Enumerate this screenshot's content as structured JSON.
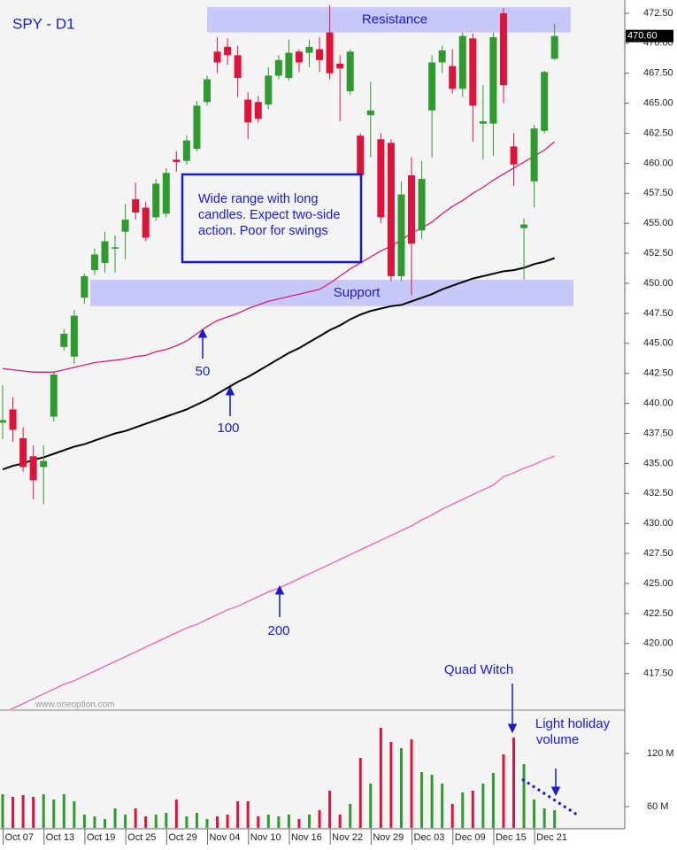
{
  "chart_data": {
    "type": "candlestick",
    "title": "SPY - D1",
    "categories": [
      null,
      "Oct 07",
      null,
      null,
      null,
      "Oct 13",
      null,
      null,
      null,
      "Oct 19",
      null,
      null,
      null,
      "Oct 25",
      null,
      null,
      null,
      "Oct 29",
      null,
      null,
      null,
      "Nov 04",
      null,
      null,
      null,
      "Nov 10",
      null,
      null,
      null,
      "Nov 16",
      null,
      null,
      null,
      "Nov 22",
      null,
      null,
      null,
      "Nov 29",
      null,
      null,
      null,
      "Dec 03",
      null,
      null,
      null,
      "Dec 09",
      null,
      null,
      null,
      "Dec 15",
      null,
      null,
      null,
      "Dec 21",
      null
    ],
    "open": [
      438.4,
      439.5,
      437.1,
      435.6,
      434.7,
      438.9,
      444.7,
      443.9,
      448.8,
      451.1,
      451.7,
      452.9,
      454.3,
      457.0,
      456.3,
      455.5,
      455.8,
      460.3,
      460.2,
      461.2,
      465.1,
      469.3,
      469.7,
      469.0,
      465.3,
      465.1,
      464.9,
      467.3,
      467.1,
      469.3,
      469.2,
      469.5,
      470.9,
      468.3,
      466.0,
      462.3,
      464.0,
      462.0,
      461.7,
      450.6,
      459.0,
      454.4,
      464.4,
      468.4,
      468.1,
      466.2,
      470.4,
      463.3,
      463.3,
      472.5,
      461.4,
      454.6,
      458.5,
      462.7,
      468.7
    ],
    "high": [
      441.5,
      440.5,
      438.0,
      436.5,
      436.5,
      442.6,
      446.2,
      447.8,
      450.8,
      452.9,
      454.3,
      454.0,
      456.6,
      458.4,
      456.8,
      458.7,
      459.6,
      461.0,
      462.3,
      465.2,
      467.3,
      470.5,
      470.4,
      469.8,
      465.9,
      465.6,
      468.0,
      469.0,
      470.3,
      469.5,
      470.3,
      470.5,
      473.2,
      469.0,
      469.5,
      462.5,
      466.8,
      462.5,
      462.0,
      458.5,
      460.5,
      460.2,
      469.0,
      469.8,
      469.5,
      470.9,
      470.8,
      466.5,
      470.9,
      472.9,
      462.5,
      455.4,
      463.2,
      467.7,
      471.6
    ],
    "low": [
      437.0,
      436.8,
      434.3,
      432.0,
      431.6,
      438.5,
      444.4,
      443.3,
      448.3,
      450.7,
      450.9,
      450.9,
      452.0,
      455.3,
      453.5,
      455.2,
      455.5,
      459.3,
      459.9,
      461.0,
      464.8,
      467.5,
      468.2,
      465.5,
      462.0,
      463.4,
      464.5,
      467.0,
      466.9,
      467.6,
      468.0,
      467.6,
      467.0,
      463.5,
      465.7,
      458.7,
      460.5,
      455.0,
      450.2,
      450.2,
      449.0,
      453.7,
      460.5,
      467.5,
      465.8,
      465.5,
      461.8,
      460.3,
      460.6,
      465.0,
      458.1,
      450.3,
      456.3,
      462.5,
      468.6
    ],
    "close": [
      438.6,
      437.8,
      434.7,
      433.6,
      435.2,
      442.4,
      445.8,
      447.3,
      450.6,
      452.4,
      453.5,
      453.0,
      455.3,
      455.9,
      453.8,
      458.3,
      459.2,
      460.1,
      461.9,
      464.8,
      467.0,
      468.4,
      469.0,
      467.1,
      463.4,
      463.7,
      467.3,
      468.6,
      469.2,
      468.4,
      469.7,
      468.6,
      467.5,
      467.9,
      469.3,
      459.0,
      464.4,
      455.5,
      450.6,
      457.4,
      453.3,
      458.7,
      468.4,
      469.4,
      466.2,
      470.6,
      464.8,
      463.5,
      470.5,
      466.5,
      459.9,
      454.9,
      462.9,
      467.6,
      470.6
    ],
    "up_color": "#2f9a2f",
    "down_color": "#dc143c",
    "ylim": [
      414.6,
      473.6
    ],
    "yticks": [
      {
        "value": 417.5,
        "label": "417.50"
      },
      {
        "value": 420,
        "label": "420.00"
      },
      {
        "value": 422.5,
        "label": "422.50"
      },
      {
        "value": 425,
        "label": "425.00"
      },
      {
        "value": 427.5,
        "label": "427.50"
      },
      {
        "value": 430,
        "label": "430.00"
      },
      {
        "value": 432.5,
        "label": "432.50"
      },
      {
        "value": 435,
        "label": "435.00"
      },
      {
        "value": 437.5,
        "label": "437.50"
      },
      {
        "value": 440,
        "label": "440.00"
      },
      {
        "value": 442.5,
        "label": "442.50"
      },
      {
        "value": 445,
        "label": "445.00"
      },
      {
        "value": 447.5,
        "label": "447.50"
      },
      {
        "value": 450,
        "label": "450.00"
      },
      {
        "value": 452.5,
        "label": "452.50"
      },
      {
        "value": 455,
        "label": "455.00"
      },
      {
        "value": 457.5,
        "label": "457.50"
      },
      {
        "value": 460,
        "label": "460.00"
      },
      {
        "value": 462.5,
        "label": "462.50"
      },
      {
        "value": 465,
        "label": "465.00"
      },
      {
        "value": 467.5,
        "label": "467.50"
      },
      {
        "value": 470,
        "label": "470.00"
      },
      {
        "value": 472.5,
        "label": "472.50"
      }
    ],
    "last_price": {
      "value": 470.6,
      "label": "470.60"
    },
    "moving_averages": [
      {
        "name": "50",
        "color": "#d0207a",
        "values": [
          442.9,
          442.8,
          442.7,
          442.6,
          442.6,
          442.6,
          442.8,
          443.0,
          443.2,
          443.4,
          443.5,
          443.6,
          443.7,
          443.9,
          444.0,
          444.3,
          444.5,
          444.8,
          445.2,
          445.8,
          446.4,
          446.9,
          447.2,
          447.5,
          447.9,
          448.2,
          448.5,
          448.7,
          448.9,
          449.1,
          449.3,
          449.5,
          450.0,
          450.6,
          451.2,
          451.7,
          452.2,
          452.7,
          453.1,
          453.6,
          454.2,
          454.6,
          455.1,
          455.8,
          456.4,
          456.9,
          457.5,
          458.0,
          458.6,
          459.1,
          459.6,
          460.1,
          460.6,
          461.1,
          461.8
        ]
      },
      {
        "name": "100",
        "color": "#000000",
        "values": [
          434.5,
          434.8,
          435.0,
          435.3,
          435.5,
          435.8,
          436.1,
          436.4,
          436.6,
          436.9,
          437.2,
          437.5,
          437.7,
          438.0,
          438.3,
          438.6,
          438.9,
          439.2,
          439.5,
          439.9,
          440.3,
          440.8,
          441.3,
          441.8,
          442.2,
          442.7,
          443.2,
          443.7,
          444.2,
          444.6,
          445.1,
          445.6,
          446.1,
          446.5,
          447.0,
          447.4,
          447.7,
          447.9,
          448.1,
          448.2,
          448.5,
          448.8,
          449.1,
          449.5,
          449.8,
          450.1,
          450.4,
          450.6,
          450.8,
          451.0,
          451.1,
          451.3,
          451.6,
          451.8,
          452.1
        ]
      },
      {
        "name": "200",
        "color": "#f060b0",
        "values": [
          414.2,
          414.6,
          415.0,
          415.4,
          415.8,
          416.2,
          416.6,
          416.9,
          417.3,
          417.7,
          418.1,
          418.5,
          418.9,
          419.3,
          419.7,
          420.1,
          420.5,
          420.9,
          421.3,
          421.6,
          422.0,
          422.4,
          422.8,
          423.1,
          423.5,
          423.9,
          424.3,
          424.6,
          425.0,
          425.4,
          425.8,
          426.2,
          426.6,
          427.0,
          427.4,
          427.8,
          428.2,
          428.6,
          429.0,
          429.4,
          429.8,
          430.3,
          430.7,
          431.2,
          431.6,
          432.0,
          432.4,
          432.8,
          433.2,
          433.9,
          434.2,
          434.6,
          434.9,
          435.3,
          435.6
        ]
      }
    ],
    "zones": [
      {
        "label": "Resistance",
        "range": [
          470.9,
          473.0
        ],
        "color": "#c8c8f8"
      },
      {
        "label": "Support",
        "range": [
          448.1,
          450.3
        ],
        "color": "#c8c8f8"
      }
    ],
    "note": [
      "Wide range with long",
      "candles. Expect two-side",
      "action. Poor for swings"
    ],
    "watermark": "www.oneoption.com",
    "volume": {
      "values": [
        74,
        71,
        73,
        71,
        74,
        68,
        74,
        66,
        51,
        49,
        46,
        58,
        51,
        58,
        49,
        51,
        53,
        68,
        49,
        53,
        46,
        49,
        51,
        66,
        66,
        49,
        51,
        49,
        51,
        46,
        51,
        56,
        78,
        51,
        63,
        115,
        86,
        149,
        133,
        126,
        136,
        99,
        96,
        86,
        63,
        76,
        78,
        86,
        98,
        119,
        138,
        108,
        68,
        58,
        56
      ],
      "ylim": [
        36,
        168
      ],
      "yticks": [
        {
          "value": 120,
          "label": "120 M"
        },
        {
          "value": 60,
          "label": "60 M"
        }
      ]
    },
    "annotations": [
      "Quad Witch",
      "Light holiday",
      "volume"
    ]
  }
}
